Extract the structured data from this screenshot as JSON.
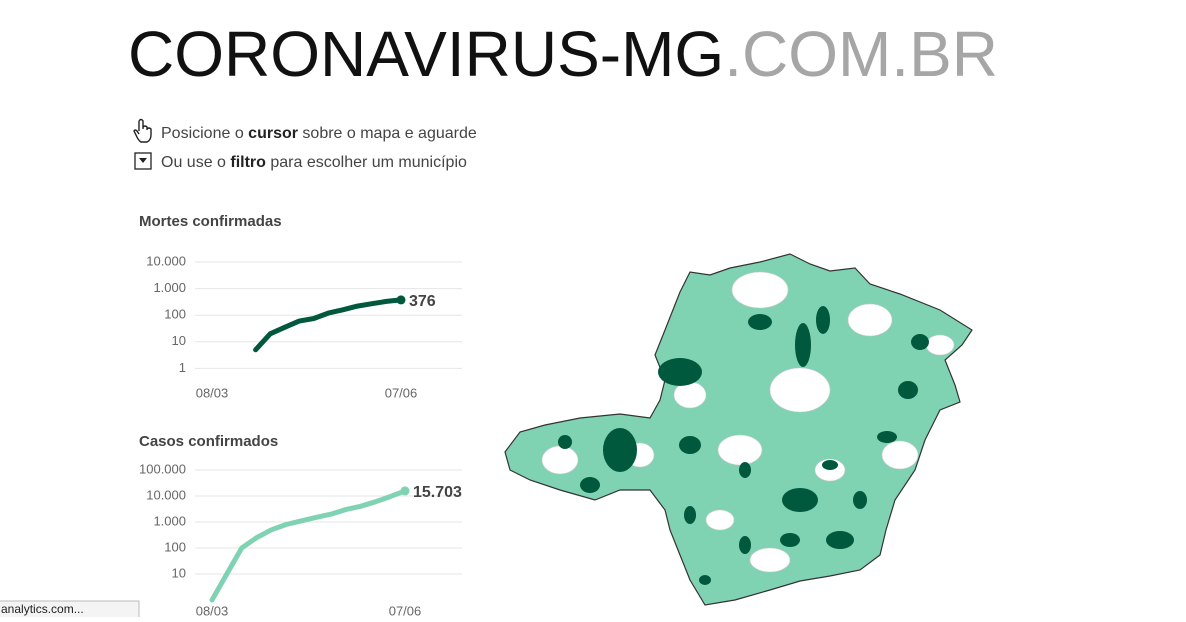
{
  "header": {
    "title": "CORONAVIRUS-MG",
    "title_suffix": ".COM.BR"
  },
  "instructions": [
    {
      "segments": [
        {
          "text": "Posicione o "
        },
        {
          "text": "cursor",
          "bold": true
        },
        {
          "text": " sobre o mapa e aguarde"
        }
      ]
    },
    {
      "segments": [
        {
          "text": "Ou use o "
        },
        {
          "text": "filtro",
          "bold": true
        },
        {
          "text": " para escolher um município"
        }
      ]
    }
  ],
  "chart_data": [
    {
      "type": "line",
      "title": "Mortes confirmadas",
      "categories": [
        "08/03",
        null,
        null,
        null,
        null,
        null,
        null,
        null,
        null,
        null,
        null,
        null,
        null,
        "07/06"
      ],
      "values": [
        null,
        null,
        null,
        5,
        20,
        35,
        60,
        75,
        120,
        160,
        220,
        270,
        330,
        376
      ],
      "color": "#00583d",
      "log_scale": true,
      "grid": true,
      "ylim": [
        0.4,
        10000
      ],
      "yticks": [
        1,
        10,
        100,
        {
          "value": 1000,
          "label": "1.000"
        },
        {
          "value": 10000,
          "label": "10.000"
        }
      ]
    },
    {
      "type": "line",
      "title": "Casos confirmados",
      "categories": [
        "08/03",
        null,
        null,
        null,
        null,
        null,
        null,
        null,
        null,
        null,
        null,
        null,
        null,
        "07/06"
      ],
      "values": [
        1,
        10,
        100,
        250,
        500,
        800,
        1100,
        1500,
        2000,
        3000,
        4000,
        6000,
        9500,
        15703
      ],
      "value_labels": [
        null,
        null,
        null,
        null,
        null,
        null,
        null,
        null,
        null,
        null,
        null,
        null,
        null,
        "15.703"
      ],
      "color": "#7fd3b3",
      "log_scale": true,
      "grid": true,
      "ylim": [
        1,
        100000
      ],
      "yticks": [
        10,
        100,
        {
          "value": 1000,
          "label": "1.000"
        },
        {
          "value": 10000,
          "label": "10.000"
        },
        {
          "value": 100000,
          "label": "100.000"
        }
      ]
    }
  ],
  "status_bar": {
    "text": "analytics.com..."
  }
}
